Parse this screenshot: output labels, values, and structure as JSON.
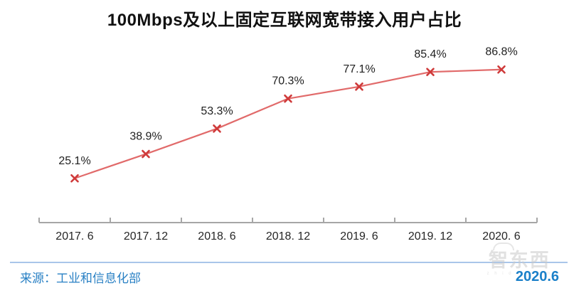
{
  "title": "100Mbps及以上固定互联网宽带接入用户占比",
  "chart_data": {
    "type": "line",
    "categories": [
      "2017. 6",
      "2017. 12",
      "2018. 6",
      "2018. 12",
      "2019. 6",
      "2019. 12",
      "2020. 6"
    ],
    "values": [
      25.1,
      38.9,
      53.3,
      70.3,
      77.1,
      85.4,
      86.8
    ],
    "point_labels": [
      "25.1%",
      "38.9%",
      "53.3%",
      "70.3%",
      "77.1%",
      "85.4%",
      "86.8%"
    ],
    "title": "100Mbps及以上固定互联网宽带接入用户占比",
    "xlabel": "",
    "ylabel": "",
    "ylim": [
      0,
      100
    ],
    "grid": false,
    "legend": "none",
    "y_axis_visible": false,
    "marker": "x",
    "line_color": "#e16a6a",
    "marker_color": "#cf3a3a",
    "axis_color": "#a6a6a6"
  },
  "footer": {
    "source": "来源：工业和信息化部",
    "period": "2020.6"
  },
  "watermark": {
    "text": "智东西",
    "subtext": "z h i d x . c o m"
  }
}
